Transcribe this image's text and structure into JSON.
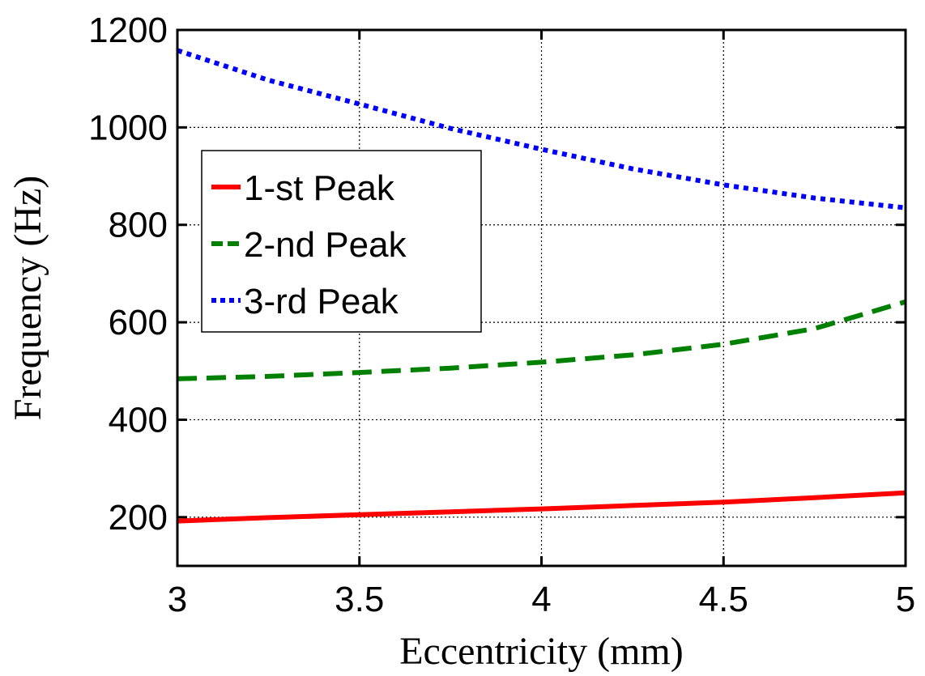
{
  "chart_data": {
    "type": "line",
    "title": "",
    "xlabel": "Eccentricity (mm)",
    "ylabel": "Frequency (Hz)",
    "xlim": [
      3,
      5
    ],
    "ylim": [
      100,
      1200
    ],
    "x_ticks": [
      3,
      3.5,
      4,
      4.5,
      5
    ],
    "x_tick_labels": [
      "3",
      "3.5",
      "4",
      "4.5",
      "5"
    ],
    "y_ticks": [
      200,
      400,
      600,
      800,
      1000,
      1200
    ],
    "y_tick_labels": [
      "200",
      "400",
      "600",
      "800",
      "1000",
      "1200"
    ],
    "grid": true,
    "legend_position": "left",
    "x": [
      3,
      3.25,
      3.5,
      3.75,
      4,
      4.25,
      4.5,
      4.75,
      5
    ],
    "series": [
      {
        "name": "1-st Peak",
        "color": "#ff0000",
        "dash": "solid",
        "values": [
          192,
          199,
          205,
          211,
          217,
          224,
          231,
          240,
          250
        ]
      },
      {
        "name": "2-nd Peak",
        "color": "#008000",
        "dash": "dashed",
        "values": [
          484,
          489,
          497,
          506,
          518,
          533,
          555,
          587,
          642
        ]
      },
      {
        "name": "3-rd Peak",
        "color": "#0000ff",
        "dash": "dotted",
        "values": [
          1158,
          1097,
          1048,
          998,
          955,
          915,
          882,
          855,
          835
        ]
      }
    ]
  }
}
